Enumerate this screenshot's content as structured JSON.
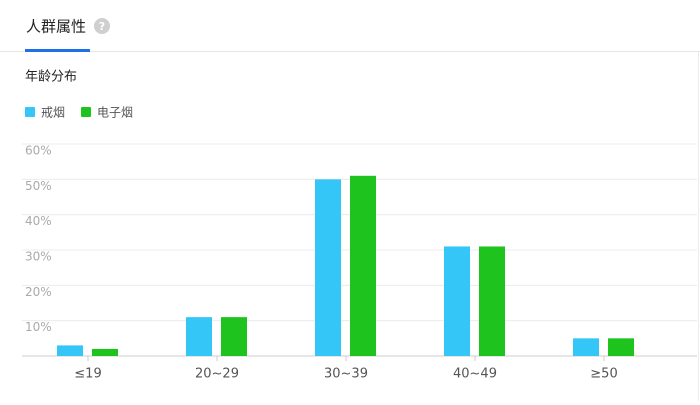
{
  "tab": "人群属性",
  "help": "?",
  "chart_data": {
    "type": "bar",
    "title": "年龄分布",
    "categories": [
      "≤19",
      "20~29",
      "30~39",
      "40~49",
      "≥50"
    ],
    "series": [
      {
        "name": "戒烟",
        "color": "#35c6f8",
        "values": [
          3,
          11,
          50,
          31,
          5
        ]
      },
      {
        "name": "电子烟",
        "color": "#1ec31e",
        "values": [
          2,
          11,
          51,
          31,
          5
        ]
      }
    ],
    "ylim": [
      0,
      60
    ],
    "yticks": [
      {
        "value": 10,
        "label": "10%"
      },
      {
        "value": 20,
        "label": "20%"
      },
      {
        "value": 30,
        "label": "30%"
      },
      {
        "value": 40,
        "label": "40%"
      },
      {
        "value": 50,
        "label": "50%"
      },
      {
        "value": 60,
        "label": "60%"
      }
    ],
    "grid": true
  }
}
